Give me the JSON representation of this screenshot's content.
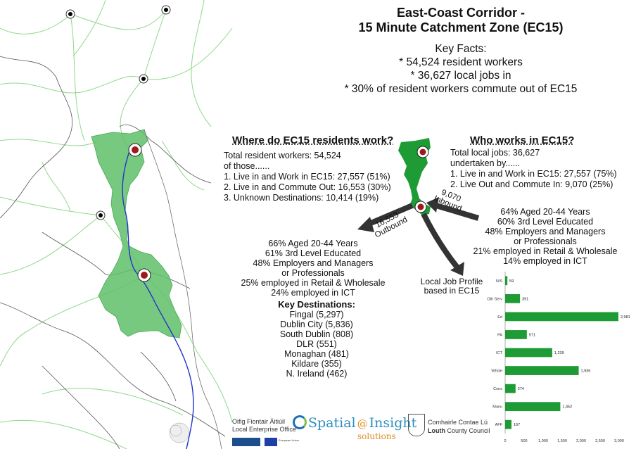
{
  "title": {
    "line1": "East-Coast Corridor -",
    "line2": "15 Minute Catchment Zone (EC15)"
  },
  "key_facts": {
    "heading": "Key Facts:",
    "items": [
      "* 54,524 resident workers",
      "* 36,627 local jobs in",
      "* 30% of resident workers commute out of EC15"
    ]
  },
  "residents": {
    "heading": "Where do EC15 residents work?",
    "lines": [
      "Total resident workers: 54,524",
      "of those......",
      "1. Live in and Work in EC15: 27,557 (51%)",
      "2. Live in and Commute Out: 16,553 (30%)",
      "3. Unknown Destinations: 10,414 (19%)"
    ],
    "profile": [
      "66% Aged 20-44 Years",
      "61% 3rd Level Educated",
      "48% Employers and Managers",
      "or Professionals",
      "25% employed in Retail & Wholesale",
      "24% employed in ICT"
    ],
    "destinations_heading": "Key Destinations:",
    "destinations": [
      "Fingal (5,297)",
      "Dublin City (5,836)",
      "South Dublin (808)",
      "DLR (551)",
      "Monaghan (481)",
      "Kildare (355)",
      "N. Ireland (462)"
    ]
  },
  "workers": {
    "heading": "Who works in EC15?",
    "lines": [
      "Total local jobs: 36,627",
      "undertaken by......",
      "1. Live in and Work in EC15: 27,557 (75%)",
      "2. Live Out and Commute In: 9,070 (25%)"
    ],
    "profile": [
      "64% Aged 20-44 Years",
      "60% 3rd Level Educated",
      "48% Employers and Managers",
      "or Professionals",
      "21% employed in Retail & Wholesale",
      "14% employed in ICT"
    ]
  },
  "arrows": {
    "outbound_num": "16,553",
    "outbound_label": "Outbound",
    "inbound_num": "9,070",
    "inbound_label": "Inbound",
    "profile_label_1": "Local Job Profile",
    "profile_label_2": "based in EC15"
  },
  "chart_data": {
    "type": "bar",
    "orientation": "horizontal",
    "categories": [
      "N/S",
      "Oth Serv",
      "Ed",
      "PA",
      "ICT",
      "Whole",
      "Cons",
      "Manu",
      "AFF"
    ],
    "values": [
      59,
      391,
      2981,
      571,
      1239,
      1936,
      274,
      1452,
      167
    ],
    "value_labels": [
      "59",
      "391",
      "2,981",
      "571",
      "1,239",
      "1,936",
      "274",
      "1,452",
      "167"
    ],
    "xlim": [
      0,
      3000
    ],
    "ticks": [
      "0",
      "500",
      "1,000",
      "1,500",
      "2,000",
      "2,500",
      "3,000"
    ],
    "bar_color": "#1e9b35",
    "grid": false
  },
  "logos": {
    "leo_line1": "Oifig Fiontair Áitiúil",
    "leo_line2": "Local Enterprise Office",
    "spatial": "Spatial",
    "insight": "Insight",
    "solutions": "solutions",
    "council_line1": "Comhairle Contae Lú",
    "council_line2_bold": "Louth",
    "council_line2_rest": " County Council",
    "eu_label": "European Union"
  },
  "colors": {
    "zone": "#5fbf6a",
    "green": "#1e9b35",
    "river": "#2233cc",
    "marker": "#9b1a1a",
    "road": "#7fd07a",
    "border": "#555555"
  }
}
